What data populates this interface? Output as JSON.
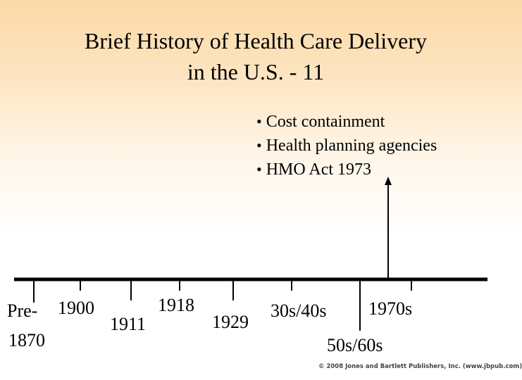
{
  "slide": {
    "title_line1": "Brief History of Health Care Delivery",
    "title_line2": "in the U.S. - 11"
  },
  "bullets": {
    "marker": "•",
    "items": [
      "Cost containment",
      "Health planning agencies",
      "HMO Act 1973"
    ]
  },
  "timeline": {
    "labels": {
      "pre_a": "Pre-",
      "pre_b": "1870",
      "y1900": "1900",
      "y1911": "1911",
      "y1918": "1918",
      "y1929": "1929",
      "y3040": "30s/40s",
      "y5060": "50s/60s",
      "y1970": "1970s"
    }
  },
  "footer": {
    "copyright": "© 2008 Jones and Bartlett Publishers, Inc. (www.jbpub.com)"
  }
}
